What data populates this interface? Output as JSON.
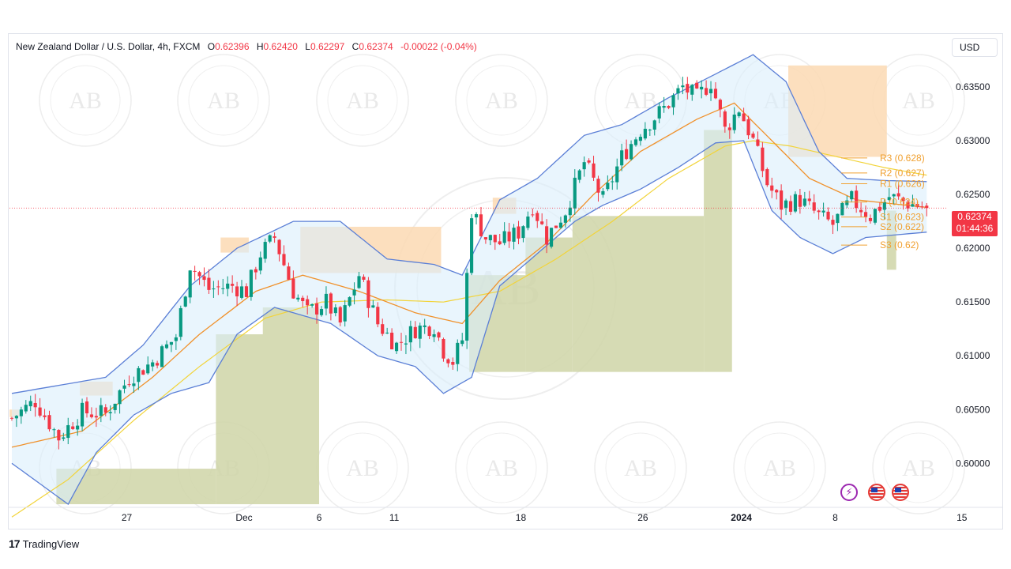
{
  "header": {
    "symbol": "New Zealand Dollar / U.S. Dollar, 4h, FXCM",
    "open_label": "O",
    "open_value": "0.62396",
    "high_label": "H",
    "high_value": "0.62420",
    "low_label": "L",
    "low_value": "0.62297",
    "close_label": "C",
    "close_value": "0.62374",
    "change_value": "-0.00022 (-0.04%)"
  },
  "toolbar": {
    "currency_label": "USD"
  },
  "price_badge": {
    "price": "0.62374",
    "countdown": "01:44:36"
  },
  "footer": {
    "brand": "TradingView"
  },
  "watermark": {
    "initials": "AB",
    "ring_text": "ARABIAN BUSINESS ACADEMY"
  },
  "events": {
    "lightning_icon": "lightning-icon",
    "flag_icon": "us-flag-icon"
  },
  "colors": {
    "up": "#089981",
    "down": "#f23645",
    "band": "#5b7fd6",
    "band_fill": "#dbeefb",
    "ema": "#f0912b",
    "sma": "#f2d43a",
    "pivot": "#f0a030",
    "supply_zone": "#fbd9b3",
    "demand_zone": "#cfd5a7"
  },
  "chart_data": {
    "type": "candlestick",
    "title": "New Zealand Dollar / U.S. Dollar, 4h, FXCM",
    "y_axis": {
      "range": [
        0.5962,
        0.64
      ],
      "ticks": [
        {
          "value": 0.635,
          "label": "0.63500"
        },
        {
          "value": 0.63,
          "label": "0.63000"
        },
        {
          "value": 0.625,
          "label": "0.62500"
        },
        {
          "value": 0.62,
          "label": "0.62000"
        },
        {
          "value": 0.615,
          "label": "0.61500"
        },
        {
          "value": 0.61,
          "label": "0.61000"
        },
        {
          "value": 0.605,
          "label": "0.60500"
        },
        {
          "value": 0.6,
          "label": "0.60000"
        }
      ]
    },
    "x_axis": {
      "bars_total": 200,
      "ticks": [
        {
          "bar": 25,
          "label": "27"
        },
        {
          "bar": 50,
          "label": "Dec"
        },
        {
          "bar": 66,
          "label": "6"
        },
        {
          "bar": 82,
          "label": "11"
        },
        {
          "bar": 109,
          "label": "18"
        },
        {
          "bar": 135,
          "label": "26"
        },
        {
          "bar": 156,
          "label": "2024"
        },
        {
          "bar": 176,
          "label": "8"
        },
        {
          "bar": 203,
          "label": "15"
        }
      ]
    },
    "current_price": 0.62374,
    "last_bar_ohlc": {
      "open": 0.62396,
      "high": 0.6242,
      "low": 0.62297,
      "close": 0.62374
    },
    "price_path_anchors": [
      {
        "bar": 0,
        "price": 0.6042
      },
      {
        "bar": 5,
        "price": 0.6058
      },
      {
        "bar": 10,
        "price": 0.6024
      },
      {
        "bar": 15,
        "price": 0.6048
      },
      {
        "bar": 20,
        "price": 0.6046
      },
      {
        "bar": 25,
        "price": 0.608
      },
      {
        "bar": 30,
        "price": 0.6094
      },
      {
        "bar": 35,
        "price": 0.6118
      },
      {
        "bar": 38,
        "price": 0.6185
      },
      {
        "bar": 42,
        "price": 0.6162
      },
      {
        "bar": 47,
        "price": 0.6165
      },
      {
        "bar": 50,
        "price": 0.616
      },
      {
        "bar": 53,
        "price": 0.6195
      },
      {
        "bar": 56,
        "price": 0.621
      },
      {
        "bar": 60,
        "price": 0.616
      },
      {
        "bar": 63,
        "price": 0.614
      },
      {
        "bar": 67,
        "price": 0.615
      },
      {
        "bar": 70,
        "price": 0.613
      },
      {
        "bar": 74,
        "price": 0.6175
      },
      {
        "bar": 78,
        "price": 0.613
      },
      {
        "bar": 82,
        "price": 0.611
      },
      {
        "bar": 86,
        "price": 0.6125
      },
      {
        "bar": 90,
        "price": 0.6128
      },
      {
        "bar": 92,
        "price": 0.6105
      },
      {
        "bar": 94,
        "price": 0.6095
      },
      {
        "bar": 96,
        "price": 0.6115
      },
      {
        "bar": 98,
        "price": 0.6235
      },
      {
        "bar": 101,
        "price": 0.621
      },
      {
        "bar": 104,
        "price": 0.6205
      },
      {
        "bar": 108,
        "price": 0.6215
      },
      {
        "bar": 111,
        "price": 0.624
      },
      {
        "bar": 114,
        "price": 0.621
      },
      {
        "bar": 118,
        "price": 0.6235
      },
      {
        "bar": 122,
        "price": 0.628
      },
      {
        "bar": 126,
        "price": 0.6245
      },
      {
        "bar": 130,
        "price": 0.6285
      },
      {
        "bar": 134,
        "price": 0.631
      },
      {
        "bar": 139,
        "price": 0.633
      },
      {
        "bar": 143,
        "price": 0.635
      },
      {
        "bar": 146,
        "price": 0.634
      },
      {
        "bar": 149,
        "price": 0.6355
      },
      {
        "bar": 152,
        "price": 0.631
      },
      {
        "bar": 155,
        "price": 0.633
      },
      {
        "bar": 158,
        "price": 0.63
      },
      {
        "bar": 161,
        "price": 0.626
      },
      {
        "bar": 164,
        "price": 0.624
      },
      {
        "bar": 168,
        "price": 0.6245
      },
      {
        "bar": 172,
        "price": 0.623
      },
      {
        "bar": 175,
        "price": 0.6222
      },
      {
        "bar": 179,
        "price": 0.6245
      },
      {
        "bar": 183,
        "price": 0.623
      },
      {
        "bar": 187,
        "price": 0.6248
      },
      {
        "bar": 191,
        "price": 0.6242
      },
      {
        "bar": 195,
        "price": 0.62374
      }
    ],
    "upper_band_anchors": [
      {
        "bar": 0,
        "price": 0.6065
      },
      {
        "bar": 20,
        "price": 0.608
      },
      {
        "bar": 28,
        "price": 0.611
      },
      {
        "bar": 38,
        "price": 0.6165
      },
      {
        "bar": 48,
        "price": 0.62
      },
      {
        "bar": 60,
        "price": 0.6225
      },
      {
        "bar": 70,
        "price": 0.6225
      },
      {
        "bar": 80,
        "price": 0.619
      },
      {
        "bar": 90,
        "price": 0.6185
      },
      {
        "bar": 96,
        "price": 0.6175
      },
      {
        "bar": 104,
        "price": 0.6245
      },
      {
        "bar": 112,
        "price": 0.6265
      },
      {
        "bar": 122,
        "price": 0.6305
      },
      {
        "bar": 130,
        "price": 0.6315
      },
      {
        "bar": 140,
        "price": 0.634
      },
      {
        "bar": 150,
        "price": 0.6362
      },
      {
        "bar": 158,
        "price": 0.638
      },
      {
        "bar": 165,
        "price": 0.6355
      },
      {
        "bar": 172,
        "price": 0.629
      },
      {
        "bar": 178,
        "price": 0.6265
      },
      {
        "bar": 186,
        "price": 0.6263
      },
      {
        "bar": 195,
        "price": 0.6262
      }
    ],
    "lower_band_anchors": [
      {
        "bar": 0,
        "price": 0.6
      },
      {
        "bar": 12,
        "price": 0.5962
      },
      {
        "bar": 18,
        "price": 0.601
      },
      {
        "bar": 26,
        "price": 0.6045
      },
      {
        "bar": 34,
        "price": 0.6065
      },
      {
        "bar": 42,
        "price": 0.6075
      },
      {
        "bar": 48,
        "price": 0.612
      },
      {
        "bar": 56,
        "price": 0.6145
      },
      {
        "bar": 68,
        "price": 0.613
      },
      {
        "bar": 78,
        "price": 0.61
      },
      {
        "bar": 86,
        "price": 0.609
      },
      {
        "bar": 92,
        "price": 0.6065
      },
      {
        "bar": 98,
        "price": 0.608
      },
      {
        "bar": 104,
        "price": 0.6165
      },
      {
        "bar": 112,
        "price": 0.6195
      },
      {
        "bar": 120,
        "price": 0.6225
      },
      {
        "bar": 126,
        "price": 0.624
      },
      {
        "bar": 134,
        "price": 0.6255
      },
      {
        "bar": 142,
        "price": 0.6275
      },
      {
        "bar": 150,
        "price": 0.6298
      },
      {
        "bar": 156,
        "price": 0.63
      },
      {
        "bar": 162,
        "price": 0.6235
      },
      {
        "bar": 168,
        "price": 0.621
      },
      {
        "bar": 175,
        "price": 0.6195
      },
      {
        "bar": 182,
        "price": 0.621
      },
      {
        "bar": 195,
        "price": 0.6215
      }
    ],
    "ema_anchors": [
      {
        "bar": 0,
        "price": 0.6015
      },
      {
        "bar": 15,
        "price": 0.603
      },
      {
        "bar": 30,
        "price": 0.608
      },
      {
        "bar": 40,
        "price": 0.612
      },
      {
        "bar": 52,
        "price": 0.616
      },
      {
        "bar": 62,
        "price": 0.6175
      },
      {
        "bar": 74,
        "price": 0.616
      },
      {
        "bar": 86,
        "price": 0.614
      },
      {
        "bar": 96,
        "price": 0.613
      },
      {
        "bar": 104,
        "price": 0.617
      },
      {
        "bar": 114,
        "price": 0.6205
      },
      {
        "bar": 124,
        "price": 0.625
      },
      {
        "bar": 134,
        "price": 0.629
      },
      {
        "bar": 146,
        "price": 0.632
      },
      {
        "bar": 154,
        "price": 0.6335
      },
      {
        "bar": 162,
        "price": 0.63
      },
      {
        "bar": 170,
        "price": 0.6265
      },
      {
        "bar": 180,
        "price": 0.6245
      },
      {
        "bar": 195,
        "price": 0.6238
      }
    ],
    "sma_anchors": [
      {
        "bar": 0,
        "price": 0.595
      },
      {
        "bar": 12,
        "price": 0.5985
      },
      {
        "bar": 26,
        "price": 0.604
      },
      {
        "bar": 40,
        "price": 0.609
      },
      {
        "bar": 54,
        "price": 0.6135
      },
      {
        "bar": 66,
        "price": 0.615
      },
      {
        "bar": 80,
        "price": 0.6152
      },
      {
        "bar": 92,
        "price": 0.615
      },
      {
        "bar": 104,
        "price": 0.616
      },
      {
        "bar": 116,
        "price": 0.619
      },
      {
        "bar": 128,
        "price": 0.6225
      },
      {
        "bar": 140,
        "price": 0.6265
      },
      {
        "bar": 152,
        "price": 0.6295
      },
      {
        "bar": 158,
        "price": 0.63
      },
      {
        "bar": 166,
        "price": 0.6295
      },
      {
        "bar": 176,
        "price": 0.6285
      },
      {
        "bar": 186,
        "price": 0.6275
      },
      {
        "bar": 195,
        "price": 0.6268
      }
    ],
    "zones": [
      {
        "kind": "supply",
        "bar_start": 0,
        "bar_end": 2,
        "price_top": 0.605,
        "price_bottom": 0.6043
      },
      {
        "kind": "supply",
        "bar_start": 15,
        "bar_end": 22,
        "price_top": 0.6076,
        "price_bottom": 0.6063
      },
      {
        "kind": "supply",
        "bar_start": 45,
        "bar_end": 51,
        "price_top": 0.621,
        "price_bottom": 0.6196
      },
      {
        "kind": "supply",
        "bar_start": 62,
        "bar_end": 92,
        "price_top": 0.622,
        "price_bottom": 0.6177
      },
      {
        "kind": "supply",
        "bar_start": 103,
        "bar_end": 108,
        "price_top": 0.6247,
        "price_bottom": 0.6232
      },
      {
        "kind": "supply",
        "bar_start": 166,
        "bar_end": 187,
        "price_top": 0.637,
        "price_bottom": 0.6285
      },
      {
        "kind": "demand",
        "bar_start": 10,
        "bar_end": 44,
        "price_top": 0.5995,
        "price_bottom": 0.5962
      },
      {
        "kind": "demand",
        "bar_start": 44,
        "bar_end": 50,
        "price_top": 0.612,
        "price_bottom": 0.5962
      },
      {
        "kind": "demand",
        "bar_start": 50,
        "bar_end": 66,
        "price_top": 0.612,
        "price_bottom": 0.5962
      },
      {
        "kind": "demand",
        "bar_start": 54,
        "bar_end": 66,
        "price_top": 0.6145,
        "price_bottom": 0.612
      },
      {
        "kind": "demand",
        "bar_start": 98,
        "bar_end": 110,
        "price_top": 0.6175,
        "price_bottom": 0.6085
      },
      {
        "kind": "demand",
        "bar_start": 110,
        "bar_end": 120,
        "price_top": 0.621,
        "price_bottom": 0.6085
      },
      {
        "kind": "demand",
        "bar_start": 120,
        "bar_end": 148,
        "price_top": 0.623,
        "price_bottom": 0.6085
      },
      {
        "kind": "demand",
        "bar_start": 148,
        "bar_end": 154,
        "price_top": 0.631,
        "price_bottom": 0.6085
      },
      {
        "kind": "demand",
        "bar_start": 187,
        "bar_end": 189,
        "price_top": 0.6235,
        "price_bottom": 0.618
      }
    ],
    "pivot_levels": [
      {
        "label": "R3 (0.628)",
        "value": 0.6284
      },
      {
        "label": "R2 (0.627)",
        "value": 0.627
      },
      {
        "label": "R1 (0.626)",
        "value": 0.626
      },
      {
        "label": "P (0.624)",
        "value": 0.6243
      },
      {
        "label": "S1 (0.623)",
        "value": 0.6229
      },
      {
        "label": "S2 (0.622)",
        "value": 0.622
      },
      {
        "label": "S3 (0.62)",
        "value": 0.6203
      }
    ]
  }
}
